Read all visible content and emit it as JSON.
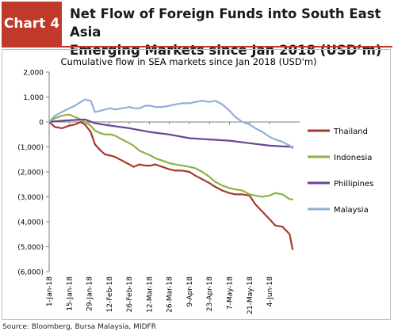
{
  "header": {
    "badge": "Chart 4",
    "title_line1": "Net Flow of Foreign Funds into South East Asia",
    "title_line2": "Emerging Markets since Jan 2018 (USD’m)"
  },
  "source": "Source: Bloomberg, Bursa Malaysia, MIDFR",
  "colors": {
    "accent": "#c0392b",
    "thailand": "#a6382d",
    "indonesia": "#8cb342",
    "phillipines": "#6a4596",
    "malaysia": "#92afd4"
  },
  "chart_data": {
    "type": "line",
    "title": "Cumulative flow in SEA markets since Jan 2018 (USD'm)",
    "xlabel": "",
    "ylabel": "",
    "ylim": [
      -6000,
      2000
    ],
    "yticks": [
      2000,
      1000,
      0,
      -1000,
      -2000,
      -3000,
      -4000,
      -5000,
      -6000
    ],
    "ytick_labels": [
      "2,000",
      "1,000",
      "0",
      "(1,000)",
      "(2,000)",
      "(3,000)",
      "(4,000)",
      "(5,000)",
      "(6,000)"
    ],
    "xrange": [
      "2018-01-01",
      "2018-06-25"
    ],
    "xtick_labels": [
      "1-Jan-18",
      "15-Jan-18",
      "29-Jan-18",
      "12-Feb-18",
      "26-Feb-18",
      "12-Mar-18",
      "26-Mar-18",
      "9-Apr-18",
      "23-Apr-18",
      "7-May-18",
      "21-May-18",
      "4-Jun-18"
    ],
    "xtick_dates": [
      "2018-01-01",
      "2018-01-15",
      "2018-01-29",
      "2018-02-12",
      "2018-02-26",
      "2018-03-12",
      "2018-03-26",
      "2018-04-09",
      "2018-04-23",
      "2018-05-07",
      "2018-05-21",
      "2018-06-04"
    ],
    "grid": false,
    "legend_position": "right",
    "series": [
      {
        "name": "Thailand",
        "color_key": "thailand",
        "x": [
          "2018-01-01",
          "2018-01-05",
          "2018-01-10",
          "2018-01-15",
          "2018-01-19",
          "2018-01-23",
          "2018-01-26",
          "2018-01-30",
          "2018-02-02",
          "2018-02-06",
          "2018-02-09",
          "2018-02-13",
          "2018-02-16",
          "2018-02-21",
          "2018-02-26",
          "2018-03-01",
          "2018-03-05",
          "2018-03-09",
          "2018-03-13",
          "2018-03-16",
          "2018-03-21",
          "2018-03-26",
          "2018-03-30",
          "2018-04-04",
          "2018-04-09",
          "2018-04-13",
          "2018-04-18",
          "2018-04-23",
          "2018-04-27",
          "2018-05-02",
          "2018-05-07",
          "2018-05-11",
          "2018-05-16",
          "2018-05-21",
          "2018-05-25",
          "2018-05-30",
          "2018-06-04",
          "2018-06-08",
          "2018-06-13",
          "2018-06-18",
          "2018-06-20"
        ],
        "values": [
          0,
          -200,
          -250,
          -150,
          -100,
          0,
          -100,
          -400,
          -900,
          -1150,
          -1300,
          -1350,
          -1400,
          -1550,
          -1700,
          -1800,
          -1700,
          -1750,
          -1750,
          -1700,
          -1800,
          -1900,
          -1950,
          -1950,
          -2000,
          -2150,
          -2300,
          -2450,
          -2600,
          -2750,
          -2850,
          -2900,
          -2900,
          -2950,
          -3300,
          -3600,
          -3900,
          -4150,
          -4200,
          -4500,
          -5100
        ]
      },
      {
        "name": "Indonesia",
        "color_key": "indonesia",
        "x": [
          "2018-01-01",
          "2018-01-05",
          "2018-01-10",
          "2018-01-15",
          "2018-01-19",
          "2018-01-23",
          "2018-01-26",
          "2018-01-30",
          "2018-02-02",
          "2018-02-06",
          "2018-02-09",
          "2018-02-13",
          "2018-02-16",
          "2018-02-21",
          "2018-02-26",
          "2018-03-01",
          "2018-03-05",
          "2018-03-09",
          "2018-03-13",
          "2018-03-16",
          "2018-03-21",
          "2018-03-26",
          "2018-03-30",
          "2018-04-04",
          "2018-04-09",
          "2018-04-13",
          "2018-04-18",
          "2018-04-23",
          "2018-04-27",
          "2018-05-02",
          "2018-05-07",
          "2018-05-11",
          "2018-05-16",
          "2018-05-21",
          "2018-05-25",
          "2018-05-30",
          "2018-06-04",
          "2018-06-08",
          "2018-06-13",
          "2018-06-18",
          "2018-06-20"
        ],
        "values": [
          0,
          150,
          250,
          300,
          200,
          100,
          0,
          -150,
          -350,
          -450,
          -500,
          -500,
          -550,
          -700,
          -850,
          -950,
          -1150,
          -1250,
          -1350,
          -1450,
          -1550,
          -1650,
          -1700,
          -1750,
          -1800,
          -1850,
          -2000,
          -2200,
          -2400,
          -2550,
          -2650,
          -2700,
          -2750,
          -2900,
          -2950,
          -3000,
          -2950,
          -2850,
          -2900,
          -3100,
          -3100
        ]
      },
      {
        "name": "Phillipines",
        "color_key": "phillipines",
        "x": [
          "2018-01-01",
          "2018-01-10",
          "2018-01-19",
          "2018-01-26",
          "2018-02-02",
          "2018-02-13",
          "2018-02-26",
          "2018-03-12",
          "2018-03-26",
          "2018-04-09",
          "2018-04-23",
          "2018-05-07",
          "2018-05-21",
          "2018-06-04",
          "2018-06-20"
        ],
        "values": [
          0,
          50,
          80,
          100,
          -50,
          -150,
          -250,
          -400,
          -500,
          -650,
          -700,
          -750,
          -850,
          -950,
          -1000
        ]
      },
      {
        "name": "Malaysia",
        "color_key": "malaysia",
        "x": [
          "2018-01-01",
          "2018-01-05",
          "2018-01-10",
          "2018-01-15",
          "2018-01-19",
          "2018-01-23",
          "2018-01-26",
          "2018-01-30",
          "2018-02-02",
          "2018-02-06",
          "2018-02-09",
          "2018-02-13",
          "2018-02-16",
          "2018-02-21",
          "2018-02-26",
          "2018-03-01",
          "2018-03-05",
          "2018-03-09",
          "2018-03-13",
          "2018-03-16",
          "2018-03-21",
          "2018-03-26",
          "2018-03-30",
          "2018-04-04",
          "2018-04-09",
          "2018-04-13",
          "2018-04-18",
          "2018-04-23",
          "2018-04-27",
          "2018-05-02",
          "2018-05-07",
          "2018-05-11",
          "2018-05-16",
          "2018-05-21",
          "2018-05-25",
          "2018-05-30",
          "2018-06-04",
          "2018-06-08",
          "2018-06-13",
          "2018-06-18",
          "2018-06-20"
        ],
        "values": [
          0,
          250,
          400,
          550,
          650,
          800,
          900,
          850,
          400,
          450,
          500,
          550,
          500,
          550,
          600,
          550,
          550,
          650,
          650,
          600,
          600,
          650,
          700,
          750,
          750,
          800,
          850,
          800,
          850,
          700,
          450,
          200,
          0,
          -100,
          -250,
          -400,
          -600,
          -700,
          -800,
          -950,
          -1050
        ]
      }
    ]
  }
}
